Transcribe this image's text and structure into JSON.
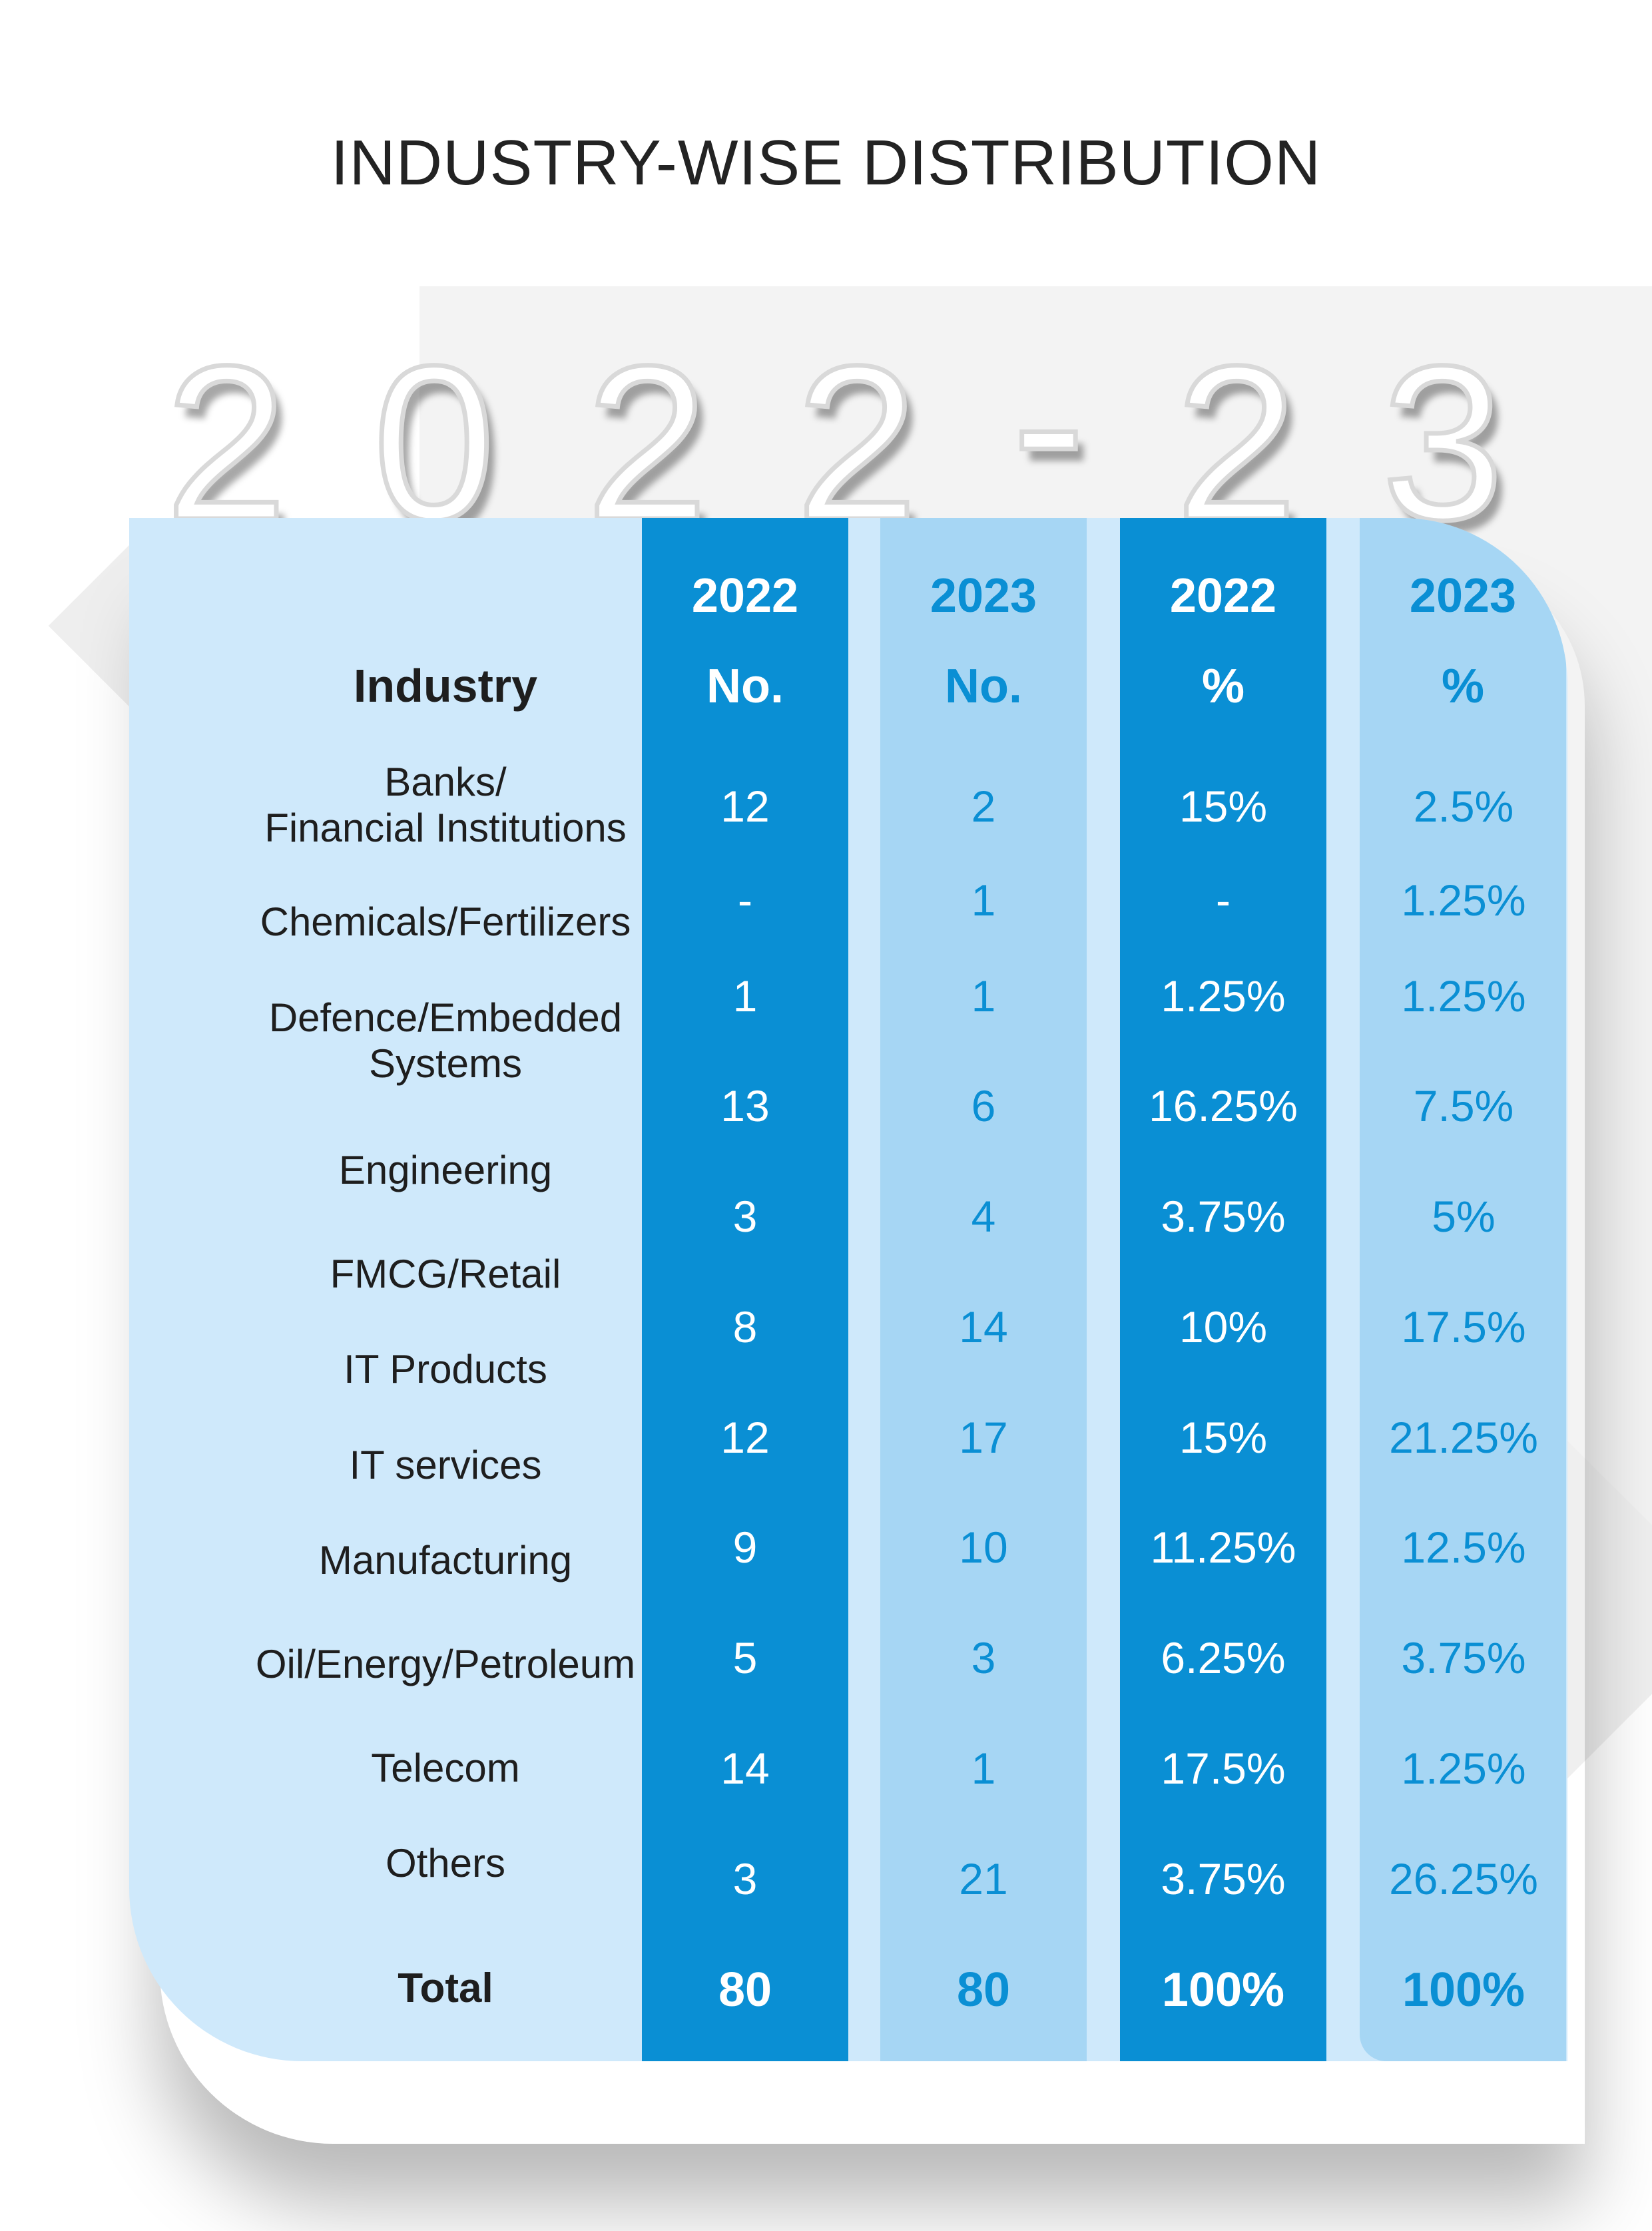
{
  "title": "INDUSTRY-WISE DISTRIBUTION",
  "year_label": [
    "2",
    "0",
    "2",
    "2",
    "-",
    "2",
    "3"
  ],
  "header": {
    "industry": "Industry",
    "col_2022_no_year": "2022",
    "col_2022_no_unit": "No.",
    "col_2023_no_year": "2023",
    "col_2023_no_unit": "No.",
    "col_2022_pct_year": "2022",
    "col_2022_pct_unit": "%",
    "col_2023_pct_year": "2023",
    "col_2023_pct_unit": "%"
  },
  "chart_data": {
    "type": "table",
    "columns": [
      "Industry",
      "2022 No.",
      "2023 No.",
      "2022 %",
      "2023 %"
    ],
    "industries": [
      "Banks/ Financial Institutions",
      "Chemicals/Fertilizers",
      "Defence/Embedded Systems",
      "Engineering",
      "FMCG/Retail",
      "IT Products",
      "IT services",
      "Manufacturing",
      "Oil/Energy/Petroleum",
      "Telecom",
      "Others"
    ],
    "no_2022": [
      "12",
      "-",
      "1",
      "13",
      "3",
      "8",
      "12",
      "9",
      "5",
      "14",
      "3"
    ],
    "no_2023": [
      "2",
      "1",
      "1",
      "6",
      "4",
      "14",
      "17",
      "10",
      "3",
      "1",
      "21"
    ],
    "pct_2022": [
      "15%",
      "-",
      "1.25%",
      "16.25%",
      "3.75%",
      "10%",
      "15%",
      "11.25%",
      "6.25%",
      "17.5%",
      "3.75%"
    ],
    "pct_2023": [
      "2.5%",
      "1.25%",
      "1.25%",
      "7.5%",
      "5%",
      "17.5%",
      "21.25%",
      "12.5%",
      "3.75%",
      "1.25%",
      "26.25%"
    ],
    "total": {
      "label": "Total",
      "no_2022": "80",
      "no_2023": "80",
      "pct_2022": "100%",
      "pct_2023": "100%"
    }
  },
  "labels": {
    "banks_line1": "Banks/",
    "banks_line2": "Financial Institutions",
    "defence_line1": "Defence/Embedded",
    "defence_line2": "Systems"
  },
  "colors": {
    "card": "#cfe9fb",
    "dark_column": "#0a8fd4",
    "light_column": "#a6d6f4",
    "light_text": "#0a8fd4"
  }
}
